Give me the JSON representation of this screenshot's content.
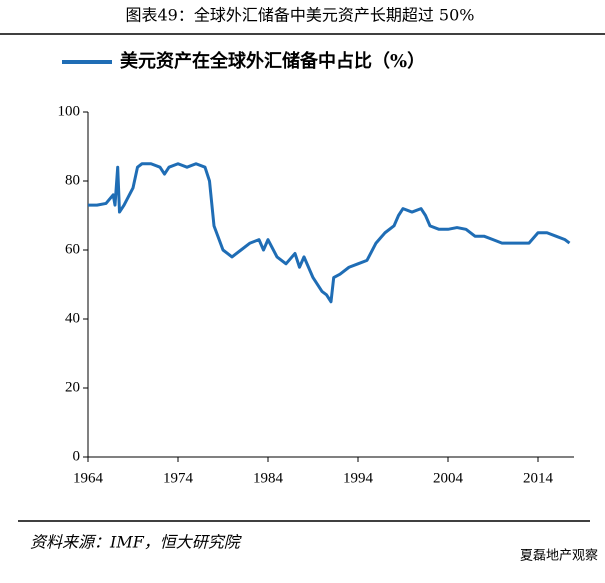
{
  "chart_data": {
    "type": "line",
    "title": "图表49：全球外汇储备中美元资产长期超过 50%",
    "source": "资料来源：IMF，恒大研究院",
    "watermark": "夏磊地产观察",
    "xlim": [
      1964,
      2018
    ],
    "xticks": [
      1964,
      1974,
      1984,
      1994,
      2004,
      2014
    ],
    "ylim": [
      0,
      100
    ],
    "yticks": [
      0,
      20,
      40,
      60,
      80,
      100
    ],
    "legend": "top",
    "x": [
      1964,
      1965,
      1966,
      1966.8,
      1967,
      1967.3,
      1967.5,
      1968,
      1969,
      1969.5,
      1970,
      1971,
      1972,
      1972.5,
      1973,
      1974,
      1975,
      1976,
      1977,
      1977.5,
      1978,
      1979,
      1980,
      1981,
      1982,
      1983,
      1983.5,
      1984,
      1985,
      1986,
      1987,
      1987.5,
      1988,
      1989,
      1990,
      1990.5,
      1991,
      1991.3,
      1992,
      1993,
      1994,
      1995,
      1996,
      1997,
      1998,
      1998.5,
      1999,
      2000,
      2001,
      2001.5,
      2002,
      2003,
      2004,
      2005,
      2006,
      2007,
      2008,
      2009,
      2010,
      2011,
      2012,
      2013,
      2014,
      2015,
      2016,
      2017,
      2017.5
    ],
    "series": [
      {
        "name": "美元资产在全球外汇储备中占比（%）",
        "color": "#1f6db5",
        "values": [
          73,
          73,
          73.5,
          76,
          73,
          84,
          71,
          73,
          78,
          84,
          85,
          85,
          84,
          82,
          84,
          85,
          84,
          85,
          84,
          80,
          67,
          60,
          58,
          60,
          62,
          63,
          60,
          63,
          58,
          56,
          59,
          55,
          58,
          52,
          48,
          47,
          45,
          52,
          53,
          55,
          56,
          57,
          62,
          65,
          67,
          70,
          72,
          71,
          72,
          70,
          67,
          66,
          66,
          66.5,
          66,
          64,
          64,
          63,
          62,
          62,
          62,
          62,
          65,
          65,
          64,
          63,
          62
        ]
      }
    ]
  }
}
